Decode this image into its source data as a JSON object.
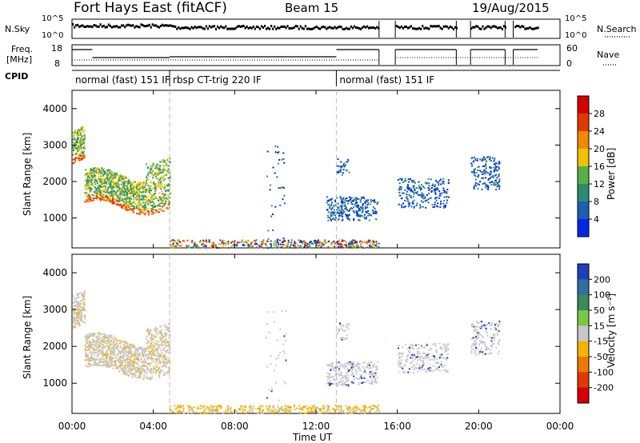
{
  "header": {
    "site": "Fort Hays East (fitACF)",
    "beam": "Beam 15",
    "date": "19/Aug/2015"
  },
  "strip": {
    "nsky_label": "N.Sky",
    "nsky_ticks": [
      "10^5",
      "10^0"
    ],
    "nsearch_label": "N.Search",
    "nsearch_ticks": [
      "10^5",
      "10^0"
    ],
    "freq_label": "Freq.",
    "freq_unit": "[MHz]",
    "freq_ticks": [
      "18",
      "8"
    ],
    "nave_label": "Nave",
    "nave_ticks": [
      "60",
      "0"
    ],
    "cpid_label": "CPID",
    "cpid_segments": [
      {
        "label": "normal (fast) 151 IF",
        "start_h": 0.0,
        "end_h": 4.8
      },
      {
        "label": "rbsp CT-trig 220 IF",
        "start_h": 4.8,
        "end_h": 13.0
      },
      {
        "label": "normal (fast) 151 IF",
        "start_h": 13.0,
        "end_h": 24.0
      }
    ],
    "data_gaps_h": [
      [
        15.1,
        15.9
      ],
      [
        18.9,
        19.6
      ],
      [
        21.3,
        21.7
      ],
      [
        22.9,
        24.0
      ]
    ]
  },
  "chart_data": [
    {
      "type": "heatmap",
      "panel": "power",
      "xlabel": "",
      "ylabel": "Slant Range [km]",
      "xlim_h": [
        0,
        24
      ],
      "ylim_km": [
        180,
        4500
      ],
      "yticks": [
        "1000",
        "2000",
        "3000",
        "4000"
      ],
      "colorbar": {
        "label": "Power [dB]",
        "ticks": [
          "28",
          "24",
          "20",
          "16",
          "12",
          "8",
          "4"
        ],
        "colors": [
          "#0026e6",
          "#1b5fb0",
          "#2e8c6e",
          "#55b04a",
          "#f2c200",
          "#f08a00",
          "#e03a00",
          "#d60000"
        ]
      },
      "scatter_regions": [
        {
          "name": "early echoes",
          "x_h": [
            0,
            4.8
          ],
          "y_km": [
            1300,
            3000
          ],
          "dominant": "red-orange"
        },
        {
          "name": "ionospheric band",
          "x_h": [
            0.5,
            4.5
          ],
          "y_km": [
            1300,
            2600
          ],
          "dominant": "green"
        },
        {
          "name": "ground scatter",
          "x_h": [
            5,
            15
          ],
          "y_km": [
            180,
            400
          ],
          "dominant": "mixed"
        },
        {
          "name": "afternoon echoes",
          "x_h": [
            12.5,
            15
          ],
          "y_km": [
            900,
            1600
          ],
          "dominant": "orange"
        },
        {
          "name": "evening echoes",
          "x_h": [
            16,
            18.5
          ],
          "y_km": [
            1300,
            2100
          ],
          "dominant": "blue"
        },
        {
          "name": "night echoes",
          "x_h": [
            19.5,
            21
          ],
          "y_km": [
            1800,
            2700
          ],
          "dominant": "blue"
        }
      ]
    },
    {
      "type": "heatmap",
      "panel": "velocity",
      "xlabel": "Time UT",
      "ylabel": "Slant Range [km]",
      "xlim_h": [
        0,
        24
      ],
      "ylim_km": [
        180,
        4500
      ],
      "xticks": [
        "00:00",
        "04:00",
        "08:00",
        "12:00",
        "16:00",
        "20:00",
        "00:00"
      ],
      "yticks": [
        "1000",
        "2000",
        "3000",
        "4000"
      ],
      "colorbar": {
        "label": "Velocity [m s⁻¹]",
        "ticks": [
          "200",
          "100",
          "50",
          "15",
          "-15",
          "-50",
          "-100",
          "-200"
        ],
        "colors": [
          "#1f3fb8",
          "#2f6f9e",
          "#3a8a5a",
          "#7bc843",
          "#c8c8c8",
          "#f3b400",
          "#f07800",
          "#e03a00",
          "#d60000"
        ]
      },
      "scatter_regions": [
        {
          "name": "early echoes",
          "x_h": [
            0,
            4.8
          ],
          "y_km": [
            1400,
            3000
          ],
          "dominant": "gray"
        },
        {
          "name": "receding flow",
          "x_h": [
            3.5,
            4.7
          ],
          "y_km": [
            1600,
            2700
          ],
          "dominant": "orange"
        },
        {
          "name": "ground scatter",
          "x_h": [
            5,
            15
          ],
          "y_km": [
            180,
            400
          ],
          "dominant": "orange"
        },
        {
          "name": "afternoon echoes",
          "x_h": [
            12.5,
            15
          ],
          "y_km": [
            1000,
            2600
          ],
          "dominant": "gray"
        },
        {
          "name": "evening echoes",
          "x_h": [
            16,
            18.5
          ],
          "y_km": [
            1300,
            2100
          ],
          "dominant": "gray"
        },
        {
          "name": "night echoes",
          "x_h": [
            19.5,
            21
          ],
          "y_km": [
            1800,
            2700
          ],
          "dominant": "gray"
        }
      ]
    }
  ]
}
